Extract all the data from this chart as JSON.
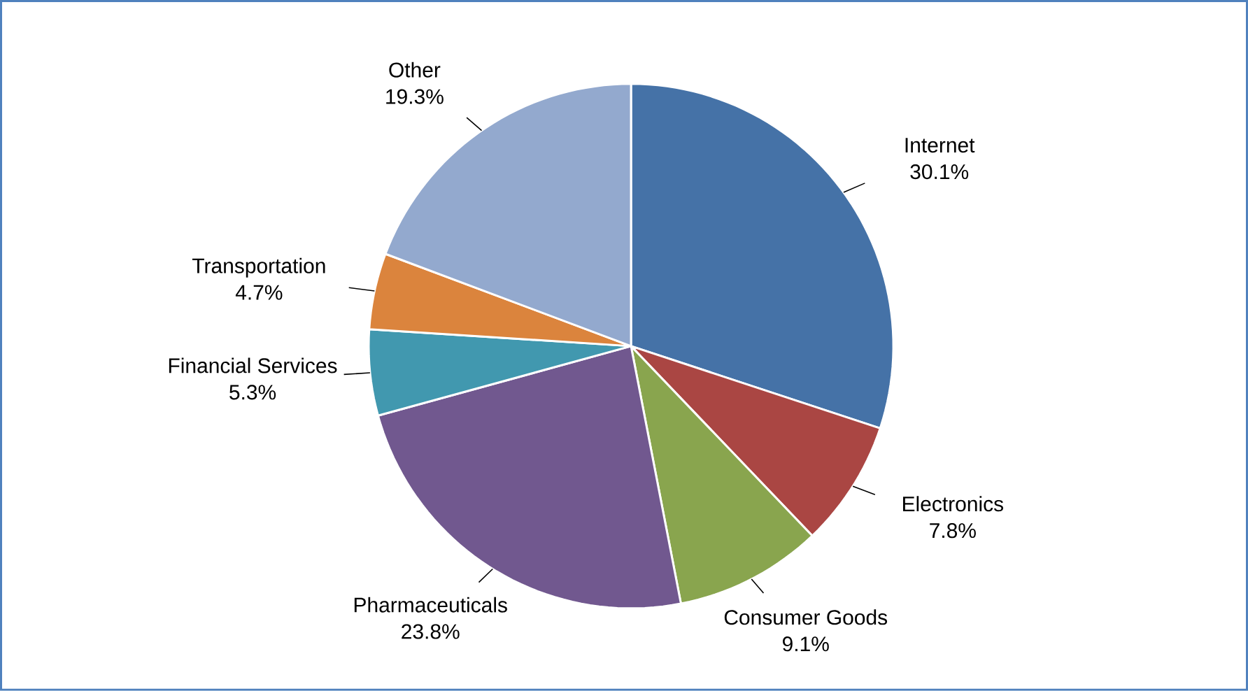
{
  "chart_data": {
    "type": "pie",
    "categories": [
      "Internet",
      "Electronics",
      "Consumer Goods",
      "Pharmaceuticals",
      "Financial Services",
      "Transportation",
      "Other"
    ],
    "values": [
      30.1,
      7.8,
      9.1,
      23.8,
      5.3,
      4.7,
      19.3
    ],
    "colors": [
      "#4572a7",
      "#aa4643",
      "#89a54e",
      "#71588f",
      "#4198af",
      "#db843d",
      "#93a9ce"
    ],
    "value_labels": [
      "30.1%",
      "7.8%",
      "9.1%",
      "23.8%",
      "5.3%",
      "4.7%",
      "19.3%"
    ]
  }
}
